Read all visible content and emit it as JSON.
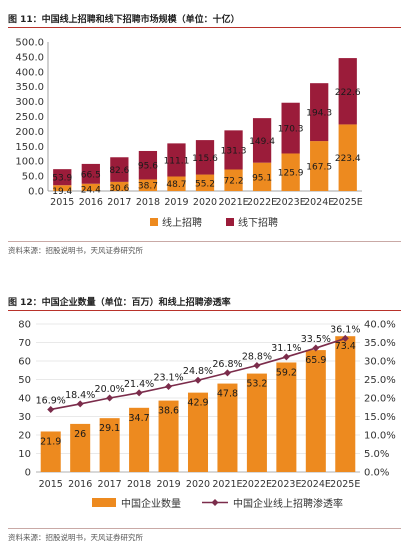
{
  "figure11": {
    "title": "图 11：中国线上招聘和线下招聘市场规模（单位：十亿）",
    "source": "资料来源：招股说明书，天风证券研究所"
  },
  "figure12": {
    "title": "图 12：中国企业数量（单位：百万）和线上招聘渗透率",
    "source": "资料来源：招股说明书，天风证券研究所"
  },
  "colors": {
    "orange": "#ed8a1f",
    "darkred": "#9b1c3a",
    "line": "#7b2c4b",
    "accent_rule": "#b8322a"
  },
  "chart_data": [
    {
      "type": "bar",
      "stacked": true,
      "title": "中国线上招聘和线下招聘市场规模（单位：十亿）",
      "categories": [
        "2015",
        "2016",
        "2017",
        "2018",
        "2019",
        "2020",
        "2021E",
        "2022E",
        "2023E",
        "2024E",
        "2025E"
      ],
      "series": [
        {
          "name": "线上招聘",
          "color": "#ed8a1f",
          "values": [
            19.4,
            24.4,
            30.6,
            38.7,
            48.7,
            55.2,
            72.2,
            95.1,
            125.9,
            167.5,
            223.4
          ]
        },
        {
          "name": "线下招聘",
          "color": "#9b1c3a",
          "values": [
            53.9,
            66.5,
            82.6,
            95.6,
            111.1,
            115.6,
            131.3,
            149.4,
            170.3,
            194.3,
            222.6
          ]
        }
      ],
      "ylim": [
        0,
        500
      ],
      "yticks": [
        "0.0",
        "50.0",
        "100.0",
        "150.0",
        "200.0",
        "250.0",
        "300.0",
        "350.0",
        "400.0",
        "450.0",
        "500.0"
      ],
      "grid": false,
      "legend": "bottom"
    },
    {
      "type": "bar",
      "title": "中国企业数量（单位：百万）和线上招聘渗透率",
      "categories": [
        "2015",
        "2016",
        "2017",
        "2018",
        "2019",
        "2020",
        "2021E",
        "2022E",
        "2023E",
        "2024E",
        "2025E"
      ],
      "series": [
        {
          "name": "中国企业数量",
          "kind": "bar",
          "axis": "left",
          "color": "#ed8a1f",
          "values": [
            21.9,
            26,
            29.1,
            34.7,
            38.6,
            42.9,
            47.8,
            53.2,
            59.2,
            65.9,
            73.4
          ],
          "labels": [
            "21.9",
            "26",
            "29.1",
            "34.7",
            "38.6",
            "42.9",
            "47.8",
            "53.2",
            "59.2",
            "65.9",
            "73.4"
          ]
        },
        {
          "name": "中国企业线上招聘渗透率",
          "kind": "line",
          "axis": "right",
          "color": "#7b2c4b",
          "values": [
            16.9,
            18.4,
            20.0,
            21.4,
            23.1,
            24.8,
            26.8,
            28.8,
            31.1,
            33.5,
            36.1
          ],
          "labels": [
            "16.9%",
            "18.4%",
            "20.0%",
            "21.4%",
            "23.1%",
            "24.8%",
            "26.8%",
            "28.8%",
            "31.1%",
            "33.5%",
            "36.1%"
          ]
        }
      ],
      "ylim": [
        0,
        80
      ],
      "yticks": [
        "0",
        "10",
        "20",
        "30",
        "40",
        "50",
        "60",
        "70",
        "80"
      ],
      "y2lim": [
        0,
        40
      ],
      "y2ticks": [
        "0.0%",
        "5.0%",
        "10.0%",
        "15.0%",
        "20.0%",
        "25.0%",
        "30.0%",
        "35.0%",
        "40.0%"
      ],
      "grid": true,
      "legend": "bottom"
    }
  ]
}
